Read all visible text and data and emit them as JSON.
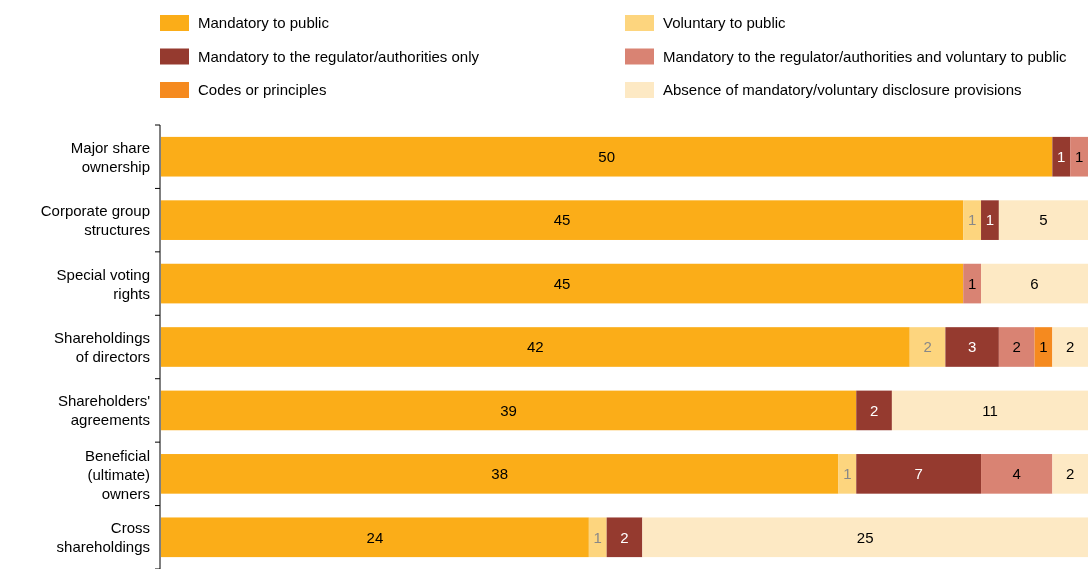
{
  "chart_data": {
    "type": "bar",
    "orientation": "horizontal",
    "stacked": true,
    "data_labels": true,
    "legend": "top",
    "categories": [
      "Major share ownership",
      "Corporate group structures",
      "Special voting rights",
      "Shareholdings of directors",
      "Shareholders' agreements",
      "Beneficial (ultimate) owners",
      "Cross shareholdings"
    ],
    "series": [
      {
        "name": "Mandatory to public",
        "color": "#fbad18",
        "values": [
          50,
          45,
          45,
          42,
          39,
          38,
          24
        ]
      },
      {
        "name": "Voluntary to public",
        "color": "#fdd57e",
        "values": [
          null,
          1,
          null,
          2,
          null,
          1,
          1
        ]
      },
      {
        "name": "Mandatory to the regulator/authorities only",
        "color": "#953a2f",
        "values": [
          1,
          1,
          null,
          3,
          2,
          7,
          2
        ]
      },
      {
        "name": "Mandatory to the regulator/authorities and voluntary to public",
        "color": "#d98373",
        "values": [
          1,
          null,
          1,
          2,
          null,
          4,
          null
        ]
      },
      {
        "name": "Codes or principles",
        "color": "#f58a1f",
        "values": [
          null,
          null,
          null,
          1,
          null,
          null,
          null
        ]
      },
      {
        "name": "Absence of mandatory/voluntary disclosure provisions",
        "color": "#fde9c4",
        "values": [
          null,
          5,
          6,
          2,
          11,
          2,
          25
        ]
      }
    ]
  }
}
